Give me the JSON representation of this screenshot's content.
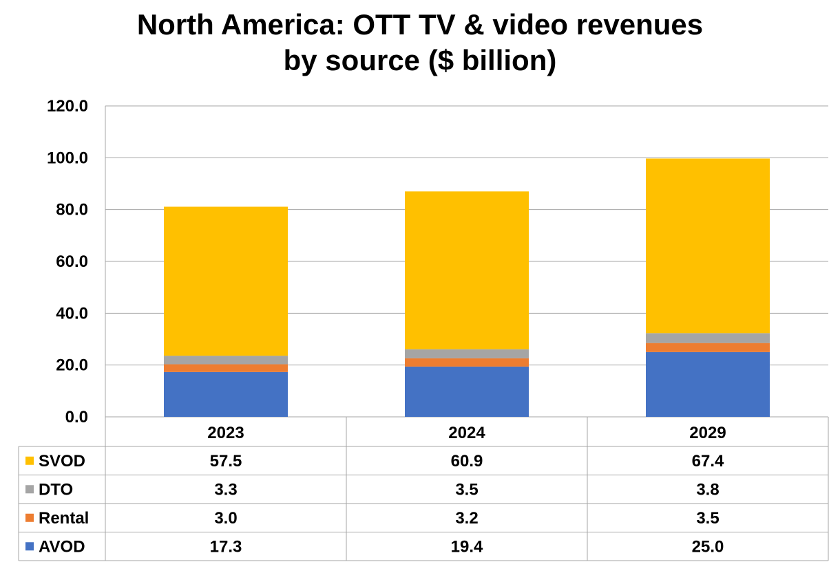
{
  "chart_data": {
    "type": "bar",
    "stacked": true,
    "title_lines": [
      "North America: OTT TV & video revenues",
      "by source ($ billion)"
    ],
    "categories": [
      "2023",
      "2024",
      "2029"
    ],
    "series": [
      {
        "name": "AVOD",
        "color": "#4472C4",
        "values": [
          "17.3",
          "19.4",
          "25.0"
        ]
      },
      {
        "name": "Rental",
        "color": "#ED7D31",
        "values": [
          "3.0",
          "3.2",
          "3.5"
        ]
      },
      {
        "name": "DTO",
        "color": "#A5A5A5",
        "values": [
          "3.3",
          "3.5",
          "3.8"
        ]
      },
      {
        "name": "SVOD",
        "color": "#FFC000",
        "values": [
          "57.5",
          "60.9",
          "67.4"
        ]
      }
    ],
    "ylim": [
      0,
      120
    ],
    "yticks": [
      "0.0",
      "20.0",
      "40.0",
      "60.0",
      "80.0",
      "100.0",
      "120.0"
    ],
    "grid": true,
    "legend": "data-table",
    "data_table_order": [
      "SVOD",
      "DTO",
      "Rental",
      "AVOD"
    ]
  }
}
